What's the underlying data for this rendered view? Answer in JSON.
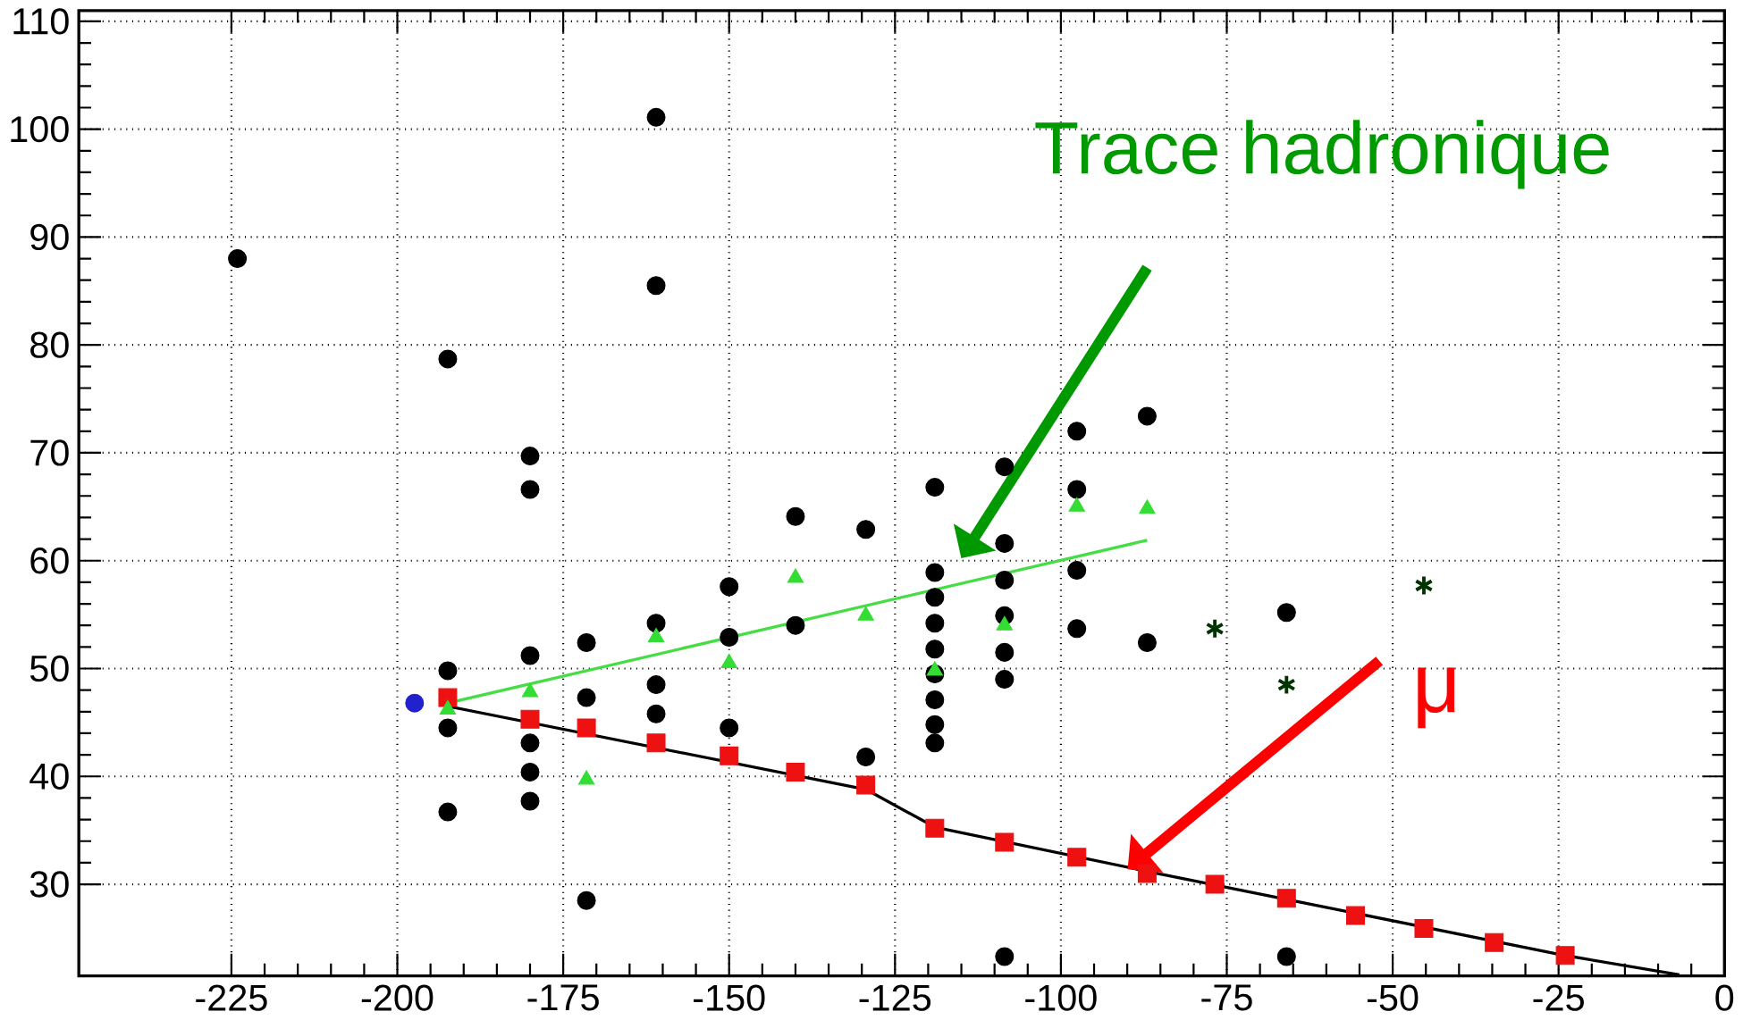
{
  "chart_data": {
    "type": "scatter",
    "xlim": [
      -248,
      0
    ],
    "ylim": [
      21.5,
      111
    ],
    "xticks": [
      -225,
      -200,
      -175,
      -150,
      -125,
      -100,
      -75,
      -50,
      -25,
      0
    ],
    "yticks": [
      30,
      40,
      50,
      60,
      70,
      80,
      90,
      100,
      110
    ],
    "grid": true,
    "annotations": [
      "Trace hadronique",
      "μ"
    ],
    "series": [
      {
        "marker": "circle",
        "color": "#000000",
        "x": [
          -224.1,
          -192.4,
          -192.4,
          -192.4,
          -192.4,
          -180,
          -180,
          -180,
          -180,
          -180,
          -180,
          -171.5,
          -171.5,
          -171.5,
          -161,
          -161,
          -161,
          -161,
          -161,
          -150,
          -150,
          -150,
          -140,
          -140,
          -129.4,
          -129.4,
          -119,
          -119,
          -119,
          -119,
          -119,
          -119,
          -119,
          -119,
          -119,
          -108.5,
          -108.5,
          -108.5,
          -108.5,
          -108.5,
          -108.5,
          -108.5,
          -97.6,
          -97.6,
          -97.6,
          -97.6,
          -87,
          -87,
          -66,
          -66
        ],
        "values": [
          88,
          78.7,
          49.8,
          44.5,
          36.7,
          69.7,
          66.6,
          51.2,
          43.1,
          40.4,
          37.7,
          52.4,
          47.3,
          28.5,
          101.1,
          85.5,
          54.2,
          48.5,
          45.8,
          57.6,
          52.9,
          44.5,
          64.1,
          54,
          62.9,
          41.8,
          66.8,
          58.9,
          56.6,
          54.2,
          51.8,
          49.5,
          47.1,
          44.8,
          43.1,
          68.7,
          61.6,
          58.2,
          54.9,
          51.5,
          49,
          23.3,
          72,
          66.6,
          59.1,
          53.7,
          73.4,
          52.4,
          55.2,
          23.3
        ]
      },
      {
        "marker": "cross",
        "color": "#003300",
        "x": [
          -76.8,
          -66,
          -45.3
        ],
        "values": [
          53.7,
          48.5,
          57.7
        ]
      },
      {
        "marker": "circle",
        "color": "#2222cc",
        "x": [
          -197.4
        ],
        "values": [
          46.8
        ]
      },
      {
        "type": "line",
        "marker": "none",
        "color": "#44dd44",
        "x": [
          -192.4,
          -87
        ],
        "values": [
          46.8,
          61.9
        ]
      },
      {
        "type": "line",
        "marker": "none",
        "color": "#000000",
        "x": [
          -192.4,
          -129.4,
          -119,
          -87,
          -24,
          -6.8
        ],
        "values": [
          46.5,
          38.8,
          35.3,
          31.2,
          23.4,
          21.6
        ]
      },
      {
        "marker": "square",
        "color": "#ee1111",
        "x": [
          -192.4,
          -180,
          -171.5,
          -161,
          -150,
          -140,
          -129.4,
          -119,
          -108.5,
          -97.6,
          -87,
          -76.8,
          -66,
          -55.6,
          -45.3,
          -34.7,
          -24
        ],
        "values": [
          47.3,
          45.3,
          44.5,
          43.1,
          41.9,
          40.4,
          39.2,
          35.2,
          33.9,
          32.5,
          31,
          30,
          28.7,
          27.1,
          25.9,
          24.6,
          23.4
        ]
      },
      {
        "marker": "triangle",
        "color": "#33dd33",
        "x": [
          -192.4,
          -180,
          -171.5,
          -161,
          -150,
          -140,
          -129.4,
          -119,
          -108.5,
          -97.6,
          -87
        ],
        "values": [
          46.2,
          47.8,
          39.7,
          52.9,
          50.5,
          58.4,
          54.9,
          49.8,
          54,
          65,
          64.8
        ]
      }
    ]
  }
}
